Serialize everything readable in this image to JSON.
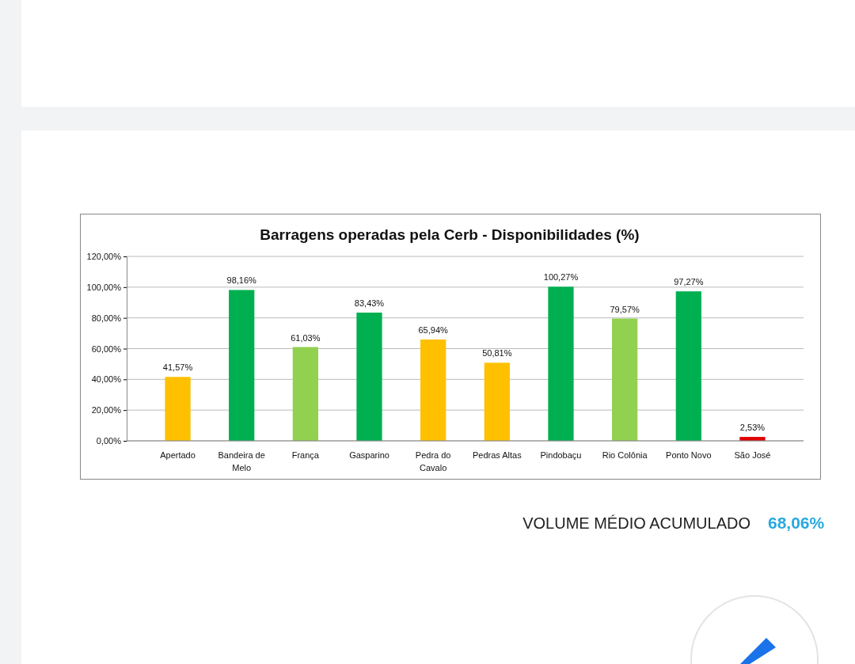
{
  "chart_data": {
    "type": "bar",
    "title": "Barragens operadas pela Cerb - Disponibilidades (%)",
    "categories": [
      "Apertado",
      "Bandeira de Melo",
      "França",
      "Gasparino",
      "Pedra do Cavalo",
      "Pedras Altas",
      "Pindobaçu",
      "Rio Colônia",
      "Ponto Novo",
      "São José"
    ],
    "values": [
      41.57,
      98.16,
      61.03,
      83.43,
      65.94,
      50.81,
      100.27,
      79.57,
      97.27,
      2.53
    ],
    "colors": [
      "#ffc000",
      "#00b050",
      "#92d050",
      "#00b050",
      "#ffc000",
      "#ffc000",
      "#00b050",
      "#92d050",
      "#00b050",
      "#e00000"
    ],
    "value_labels": [
      "41,57%",
      "98,16%",
      "61,03%",
      "83,43%",
      "65,94%",
      "50,81%",
      "100,27%",
      "79,57%",
      "97,27%",
      "2,53%"
    ],
    "ylim": [
      0,
      120
    ],
    "yticks": [
      {
        "value": 0,
        "label": "0,00%"
      },
      {
        "value": 20,
        "label": "20,00%"
      },
      {
        "value": 40,
        "label": "40,00%"
      },
      {
        "value": 60,
        "label": "60,00%"
      },
      {
        "value": 80,
        "label": "80,00%"
      },
      {
        "value": 100,
        "label": "100,00%"
      },
      {
        "value": 120,
        "label": "120,00%"
      }
    ],
    "grid": "y",
    "annotations": [
      "VOLUME MÉDIO ACUMULADO",
      "68,06%"
    ]
  }
}
